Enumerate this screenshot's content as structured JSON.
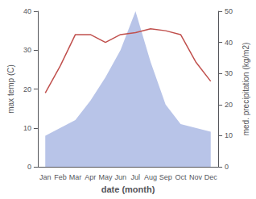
{
  "chart_data": {
    "type": "line",
    "xlabel": "date (month)",
    "ylabel": "max temp (C)",
    "y2label": "med. precipitation (kg/m2)",
    "categories": [
      "Jan",
      "Feb",
      "Mar",
      "Apr",
      "May",
      "Jun",
      "Jul",
      "Aug",
      "Sep",
      "Oct",
      "Nov",
      "Dec"
    ],
    "series": [
      {
        "type": "area",
        "color": "#b8c4e8",
        "values": [
          8,
          10,
          12,
          17,
          23,
          30,
          40,
          27,
          16,
          11,
          10,
          9
        ]
      },
      {
        "type": "line",
        "color": "#c0504d",
        "values": [
          19,
          26,
          34,
          34,
          32,
          34,
          34.5,
          35.5,
          35,
          34,
          27,
          22
        ]
      }
    ],
    "ylim": [
      0,
      40
    ],
    "yticks": [
      0,
      10,
      20,
      30,
      40
    ],
    "y2lim": [
      0,
      50
    ],
    "y2ticks": [
      0,
      10,
      20,
      30,
      40,
      50
    ],
    "grid": false
  }
}
